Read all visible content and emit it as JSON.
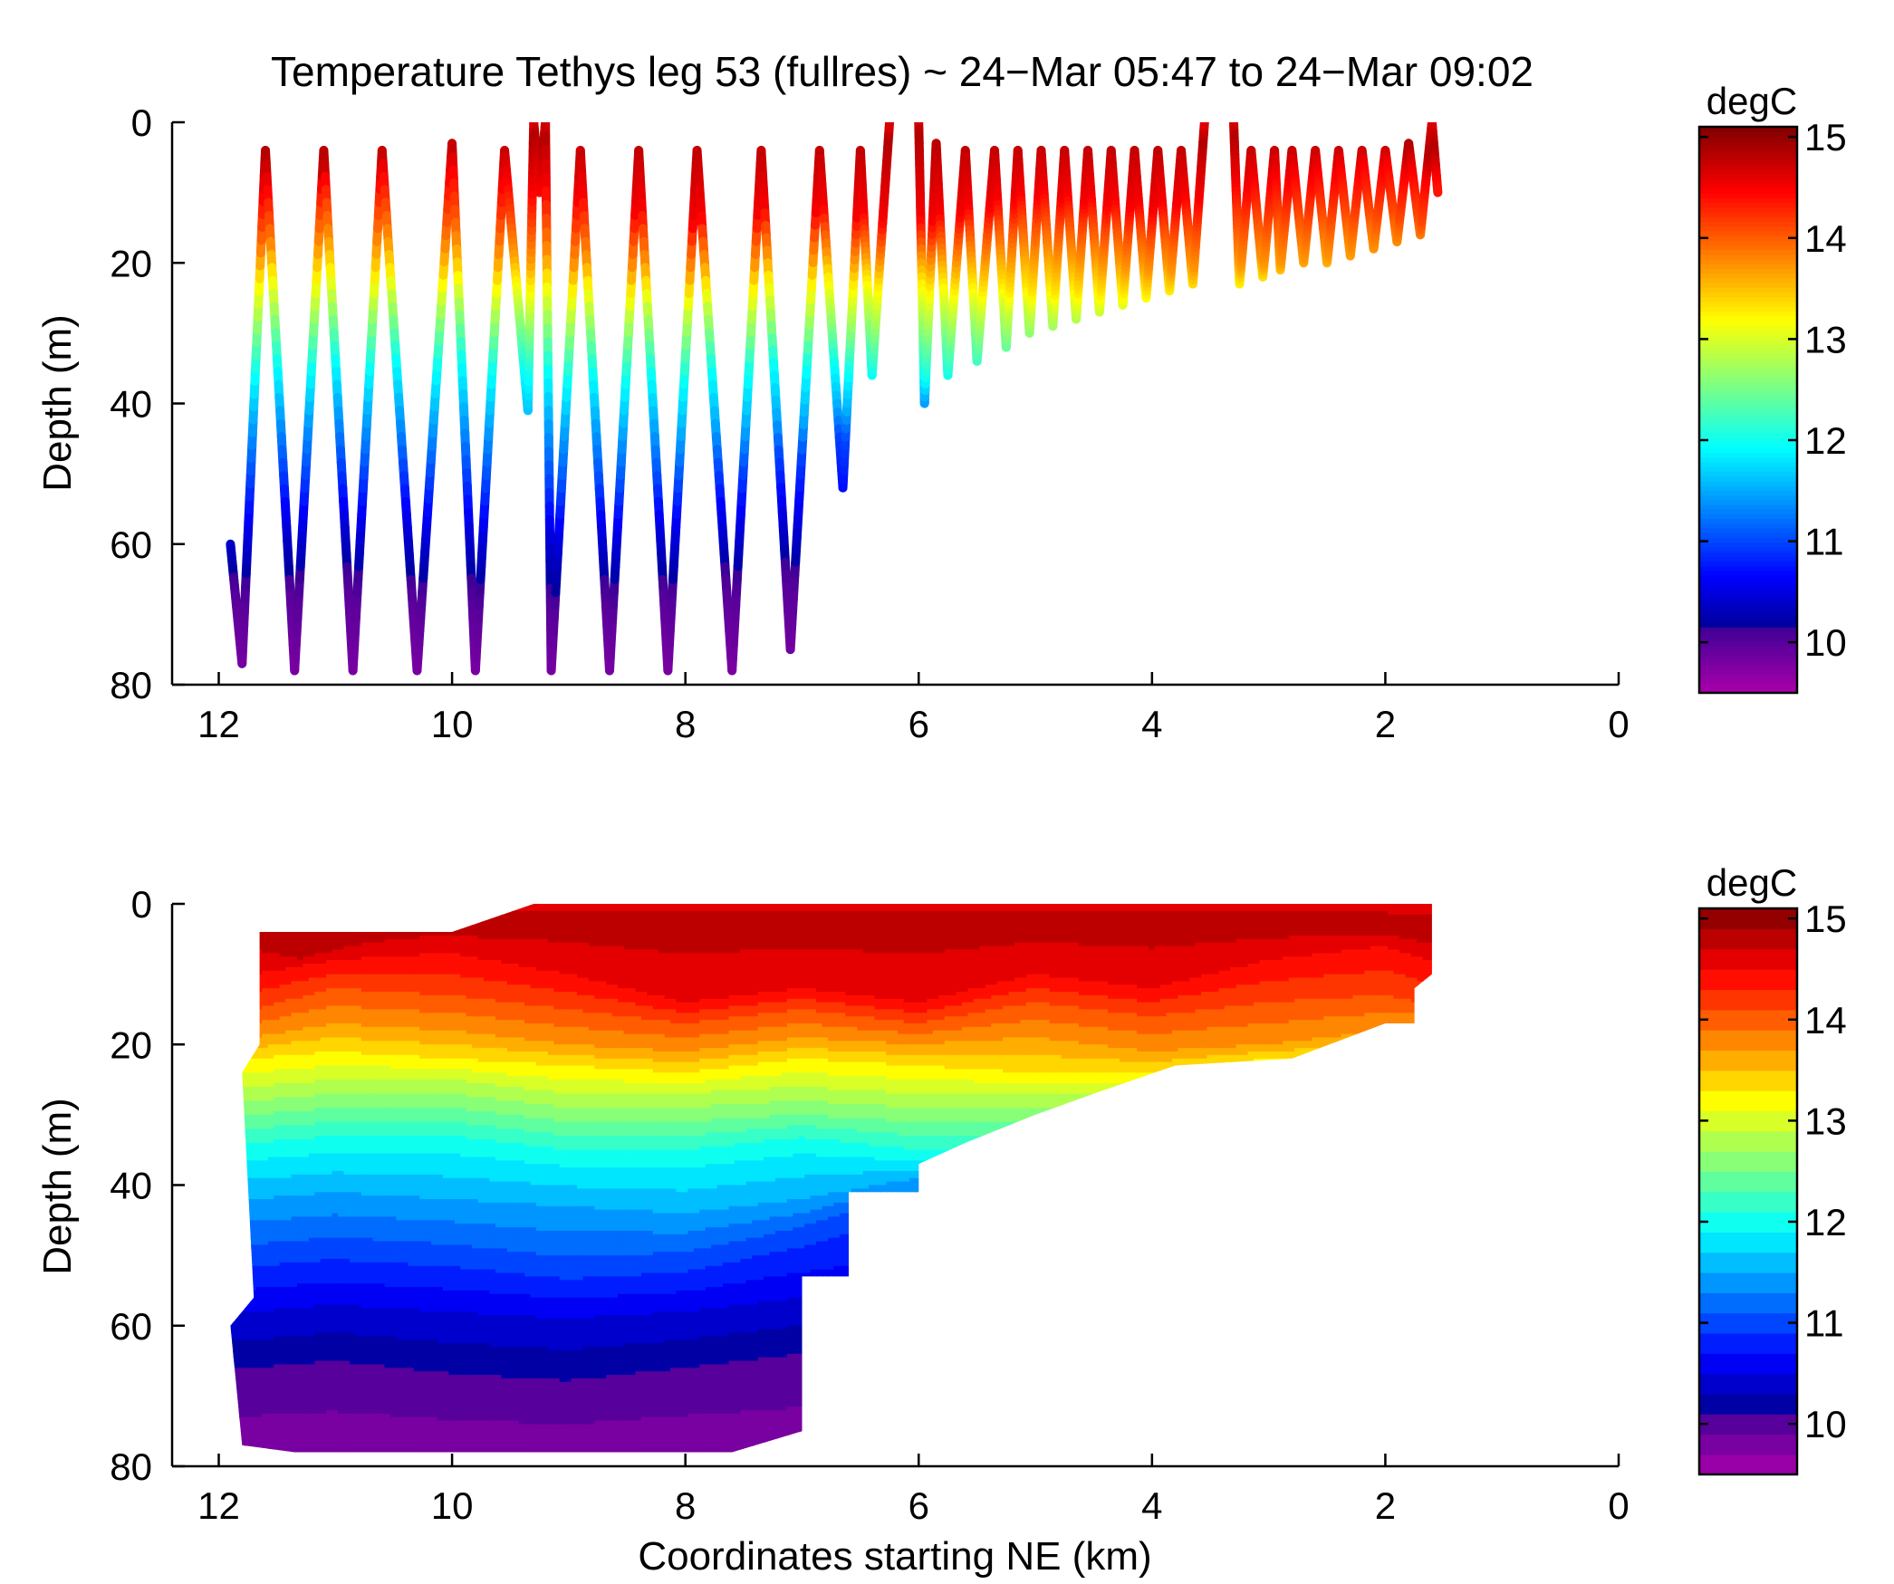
{
  "chart_data": [
    {
      "type": "scatter",
      "panel": "track",
      "title": "Temperature Tethys leg 53 (fullres) ~ 24−Mar 05:47 to 24−Mar 09:02",
      "ylabel": "Depth (m)",
      "xlabel": "",
      "xlim": [
        12.4,
        0
      ],
      "ylim": [
        0,
        80
      ],
      "x_ticks": [
        "12",
        "10",
        "8",
        "6",
        "4",
        "2",
        "0"
      ],
      "y_ticks": [
        "0",
        "20",
        "40",
        "60",
        "80"
      ],
      "colorbar": {
        "label": "degC",
        "range": [
          9.5,
          15.1
        ],
        "ticks": [
          "15",
          "14",
          "13",
          "12",
          "11",
          "10"
        ],
        "colormap": "jet",
        "continuous": true
      },
      "profiles": [
        {
          "x": 11.9,
          "top": 60
        },
        {
          "x": 11.8,
          "bottom": 77
        },
        {
          "x": 11.6,
          "top": 4
        },
        {
          "x": 11.35,
          "bottom": 78
        },
        {
          "x": 11.1,
          "top": 4
        },
        {
          "x": 10.85,
          "bottom": 78
        },
        {
          "x": 10.6,
          "top": 4
        },
        {
          "x": 10.3,
          "bottom": 78
        },
        {
          "x": 10.0,
          "top": 3
        },
        {
          "x": 9.8,
          "bottom": 78
        },
        {
          "x": 9.55,
          "top": 4
        },
        {
          "x": 9.35,
          "bottom": 41
        },
        {
          "x": 9.3,
          "top": 0
        },
        {
          "x": 9.25,
          "bottom": 10
        },
        {
          "x": 9.2,
          "top": 0
        },
        {
          "x": 9.15,
          "bottom": 78
        },
        {
          "x": 8.9,
          "top": 4
        },
        {
          "x": 8.65,
          "bottom": 78
        },
        {
          "x": 8.4,
          "top": 4
        },
        {
          "x": 8.15,
          "bottom": 78
        },
        {
          "x": 7.9,
          "top": 4
        },
        {
          "x": 7.6,
          "bottom": 78
        },
        {
          "x": 7.35,
          "top": 4
        },
        {
          "x": 7.1,
          "bottom": 75
        },
        {
          "x": 6.85,
          "top": 4
        },
        {
          "x": 6.65,
          "bottom": 52
        },
        {
          "x": 6.5,
          "top": 4
        },
        {
          "x": 6.4,
          "bottom": 36
        },
        {
          "x": 6.25,
          "top": 0
        }
      ],
      "profiles_b": [
        {
          "x": 6.0,
          "top": 0
        },
        {
          "x": 5.95,
          "bottom": 40
        },
        {
          "x": 5.85,
          "top": 3
        },
        {
          "x": 5.75,
          "bottom": 36
        },
        {
          "x": 5.6,
          "top": 4
        },
        {
          "x": 5.5,
          "bottom": 34
        },
        {
          "x": 5.35,
          "top": 4
        },
        {
          "x": 5.25,
          "bottom": 32
        },
        {
          "x": 5.15,
          "top": 4
        },
        {
          "x": 5.05,
          "bottom": 30
        },
        {
          "x": 4.95,
          "top": 4
        },
        {
          "x": 4.85,
          "bottom": 29
        },
        {
          "x": 4.75,
          "top": 4
        },
        {
          "x": 4.65,
          "bottom": 28
        },
        {
          "x": 4.55,
          "top": 4
        },
        {
          "x": 4.45,
          "bottom": 27
        },
        {
          "x": 4.35,
          "top": 4
        },
        {
          "x": 4.25,
          "bottom": 26
        },
        {
          "x": 4.15,
          "top": 4
        },
        {
          "x": 4.05,
          "bottom": 25
        },
        {
          "x": 3.95,
          "top": 4
        },
        {
          "x": 3.85,
          "bottom": 24
        },
        {
          "x": 3.75,
          "top": 4
        },
        {
          "x": 3.65,
          "bottom": 23
        },
        {
          "x": 3.55,
          "top": 0
        }
      ],
      "profiles_c": [
        {
          "x": 3.3,
          "top": 0
        },
        {
          "x": 3.25,
          "bottom": 23
        },
        {
          "x": 3.15,
          "top": 4
        },
        {
          "x": 3.05,
          "bottom": 22
        },
        {
          "x": 2.95,
          "top": 4
        },
        {
          "x": 2.9,
          "bottom": 21
        },
        {
          "x": 2.8,
          "top": 4
        },
        {
          "x": 2.7,
          "bottom": 20
        },
        {
          "x": 2.6,
          "top": 4
        },
        {
          "x": 2.5,
          "bottom": 20
        },
        {
          "x": 2.4,
          "top": 4
        },
        {
          "x": 2.3,
          "bottom": 19
        },
        {
          "x": 2.2,
          "top": 4
        },
        {
          "x": 2.1,
          "bottom": 18
        },
        {
          "x": 2.0,
          "top": 4
        },
        {
          "x": 1.9,
          "bottom": 17
        },
        {
          "x": 1.8,
          "top": 3
        },
        {
          "x": 1.7,
          "bottom": 16
        },
        {
          "x": 1.6,
          "top": 0
        },
        {
          "x": 1.55,
          "bottom": 10
        }
      ]
    },
    {
      "type": "heatmap",
      "panel": "contour",
      "title": "",
      "ylabel": "Depth (m)",
      "xlabel": "Coordinates starting NE (km)",
      "xlim": [
        12.4,
        0
      ],
      "ylim": [
        0,
        80
      ],
      "x_ticks": [
        "12",
        "10",
        "8",
        "6",
        "4",
        "2",
        "0"
      ],
      "y_ticks": [
        "0",
        "20",
        "40",
        "60",
        "80"
      ],
      "colorbar": {
        "label": "degC",
        "range": [
          9.5,
          15.1
        ],
        "ticks": [
          "15",
          "14",
          "13",
          "12",
          "11",
          "10"
        ],
        "colormap": "jet",
        "levels": 28
      },
      "surface_temperature": 14.6,
      "isotherms": [
        {
          "temp": 14.85,
          "depth": [
            [
              11.7,
              4
            ],
            [
              11.3,
              7
            ],
            [
              10.5,
              3
            ],
            [
              9.0,
              2
            ],
            [
              6.0,
              2
            ],
            [
              4.0,
              2
            ],
            [
              2.0,
              3
            ],
            [
              1.6,
              4
            ]
          ]
        },
        {
          "temp": 14.5,
          "depth": [
            [
              11.7,
              10
            ],
            [
              11.0,
              8
            ],
            [
              10.0,
              7
            ],
            [
              9.0,
              10
            ],
            [
              8.0,
              14
            ],
            [
              7.0,
              12
            ],
            [
              6.0,
              14
            ],
            [
              5.0,
              10
            ],
            [
              4.0,
              12
            ],
            [
              3.0,
              8
            ],
            [
              2.0,
              6
            ],
            [
              1.6,
              8
            ]
          ]
        },
        {
          "temp": 14.1,
          "depth": [
            [
              11.7,
              15
            ],
            [
              11.0,
              12
            ],
            [
              10.0,
              13
            ],
            [
              9.0,
              15
            ],
            [
              8.0,
              17
            ],
            [
              7.0,
              15
            ],
            [
              6.0,
              17
            ],
            [
              5.0,
              14
            ],
            [
              4.0,
              16
            ],
            [
              3.0,
              14
            ],
            [
              2.0,
              13
            ],
            [
              1.7,
              14
            ]
          ]
        },
        {
          "temp": 13.7,
          "depth": [
            [
              11.7,
              19
            ],
            [
              11.0,
              17
            ],
            [
              10.0,
              18
            ],
            [
              9.0,
              20
            ],
            [
              8.0,
              21
            ],
            [
              7.0,
              19
            ],
            [
              6.0,
              20
            ],
            [
              5.0,
              19
            ],
            [
              4.0,
              21
            ],
            [
              3.0,
              20
            ],
            [
              2.0,
              18
            ],
            [
              1.7,
              17
            ]
          ]
        },
        {
          "temp": 13.3,
          "depth": [
            [
              11.7,
              22
            ],
            [
              11.0,
              21
            ],
            [
              10.0,
              22
            ],
            [
              9.0,
              23
            ],
            [
              8.0,
              24
            ],
            [
              7.0,
              22
            ],
            [
              6.0,
              23
            ],
            [
              5.0,
              24
            ],
            [
              4.0,
              24
            ],
            [
              3.0,
              22
            ]
          ]
        },
        {
          "temp": 12.9,
          "depth": [
            [
              11.7,
              26
            ],
            [
              11.0,
              25
            ],
            [
              10.0,
              25
            ],
            [
              9.0,
              27
            ],
            [
              8.0,
              27
            ],
            [
              7.0,
              26
            ],
            [
              6.0,
              27
            ],
            [
              5.0,
              27
            ]
          ]
        },
        {
          "temp": 12.5,
          "depth": [
            [
              11.7,
              30
            ],
            [
              11.0,
              29
            ],
            [
              10.0,
              29
            ],
            [
              9.0,
              31
            ],
            [
              8.0,
              31
            ],
            [
              7.0,
              30
            ],
            [
              6.0,
              31
            ]
          ]
        },
        {
          "temp": 12.0,
          "depth": [
            [
              11.7,
              35
            ],
            [
              11.0,
              34
            ],
            [
              10.0,
              34
            ],
            [
              9.0,
              36
            ],
            [
              8.0,
              36
            ],
            [
              7.0,
              34
            ],
            [
              6.0,
              36
            ]
          ]
        },
        {
          "temp": 11.5,
          "depth": [
            [
              11.7,
              42
            ],
            [
              11.0,
              41
            ],
            [
              10.0,
              42
            ],
            [
              9.0,
              43
            ],
            [
              8.0,
              44
            ],
            [
              7.0,
              42
            ],
            [
              6.0,
              39
            ]
          ]
        },
        {
          "temp": 11.0,
          "depth": [
            [
              11.7,
              50
            ],
            [
              11.0,
              49
            ],
            [
              10.0,
              50
            ],
            [
              9.0,
              52
            ],
            [
              8.0,
              51
            ],
            [
              7.0,
              47
            ],
            [
              6.5,
              44
            ]
          ]
        },
        {
          "temp": 10.5,
          "depth": [
            [
              11.7,
              58
            ],
            [
              11.0,
              57
            ],
            [
              10.0,
              58
            ],
            [
              9.0,
              59
            ],
            [
              8.0,
              58
            ],
            [
              7.0,
              56
            ]
          ]
        },
        {
          "temp": 10.0,
          "depth": [
            [
              11.7,
              68
            ],
            [
              11.0,
              67
            ],
            [
              10.0,
              69
            ],
            [
              9.0,
              70
            ],
            [
              8.0,
              68
            ],
            [
              7.0,
              66
            ]
          ]
        },
        {
          "temp": 9.75,
          "depth": [
            [
              11.7,
              80
            ],
            [
              7.0,
              80
            ]
          ]
        }
      ],
      "data_extent": [
        [
          11.65,
          4
        ],
        [
          10.0,
          4
        ],
        [
          9.3,
          0
        ],
        [
          1.6,
          0
        ],
        [
          1.6,
          10
        ],
        [
          1.75,
          12
        ],
        [
          1.75,
          17
        ],
        [
          2.0,
          17
        ],
        [
          2.8,
          22
        ],
        [
          3.8,
          23
        ],
        [
          4.5,
          27
        ],
        [
          5.0,
          30
        ],
        [
          5.6,
          34
        ],
        [
          6.0,
          37
        ],
        [
          6.0,
          41
        ],
        [
          6.6,
          41
        ],
        [
          6.6,
          53
        ],
        [
          7.0,
          53
        ],
        [
          7.0,
          75
        ],
        [
          7.6,
          78
        ],
        [
          11.35,
          78
        ],
        [
          11.8,
          77
        ],
        [
          11.9,
          60
        ],
        [
          11.7,
          56
        ],
        [
          11.8,
          24
        ],
        [
          11.65,
          20
        ]
      ]
    }
  ]
}
